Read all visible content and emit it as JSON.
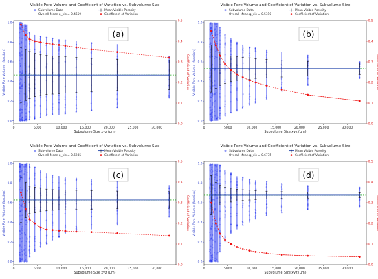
{
  "figure": {
    "axis_color_left": "#3344cc",
    "axis_color_right": "#dd2222",
    "subvolume_color": "#2233ee",
    "mean_line_color": "#2244aa",
    "overall_mean_color": "#22aa22",
    "cv_color": "#ee1111"
  },
  "chart_data": [
    {
      "type": "scatter",
      "panel_label": "(a)",
      "title": "Visible Pore Volume and Coefficient of Variation vs. Subvolume Size",
      "xlabel": "Subvolume Size xyz (μm)",
      "ylabel": "Visible Pore Volume (fraction)",
      "y2label": "Coefficient of Variation",
      "xlim": [
        0,
        34000
      ],
      "ylim": [
        -0.03,
        1.02
      ],
      "y2lim": [
        0,
        0.5
      ],
      "xticks": [
        "0",
        "5000",
        "10,000",
        "15,000",
        "20,000",
        "25,000",
        "30,000"
      ],
      "yticks": [
        "0.0",
        "0.2",
        "0.4",
        "0.6",
        "0.8",
        "1.0"
      ],
      "y2ticks": [
        "0.0",
        "0.1",
        "0.2",
        "0.3",
        "0.4",
        "0.5"
      ],
      "legend": [
        "Subvolume Data",
        "Overall Mean φ_vis = 0.4659",
        "Mean Visible Porosity",
        "Coefficient of Variation"
      ],
      "overall_mean": 0.4659,
      "x": [
        1500,
        2500,
        3300,
        4400,
        5600,
        6900,
        8100,
        9500,
        10800,
        13100,
        16300,
        21700,
        32600
      ],
      "cv": [
        0.48,
        0.43,
        0.41,
        0.4,
        0.395,
        0.39,
        0.385,
        0.382,
        0.378,
        0.37,
        0.36,
        0.348,
        0.32
      ],
      "mean": [
        0.4659,
        0.4659,
        0.4659,
        0.4659,
        0.4659,
        0.4659,
        0.4659,
        0.4659,
        0.4659,
        0.4659,
        0.4659,
        0.4659,
        0.4659
      ],
      "std": [
        0.28,
        0.26,
        0.24,
        0.22,
        0.21,
        0.2,
        0.195,
        0.19,
        0.185,
        0.18,
        0.17,
        0.16,
        0.15
      ],
      "spread_min": [
        0.0,
        0.0,
        0.01,
        0.02,
        0.03,
        0.05,
        0.06,
        0.06,
        0.07,
        0.09,
        0.1,
        0.13,
        0.23
      ],
      "spread_max": [
        1.0,
        0.98,
        0.9,
        0.87,
        0.86,
        0.85,
        0.84,
        0.83,
        0.82,
        0.81,
        0.8,
        0.78,
        0.66
      ]
    },
    {
      "type": "scatter",
      "panel_label": "(b)",
      "title": "Visible Pore Volume and Coefficient of Variation vs. Subvolume Size",
      "xlabel": "Subvolume Size xyz (μm)",
      "ylabel": "Visible Pore Volume (fraction)",
      "y2label": "Coefficient of Variation",
      "xlim": [
        0,
        34000
      ],
      "ylim": [
        -0.03,
        1.02
      ],
      "y2lim": [
        0,
        0.5
      ],
      "xticks": [
        "0",
        "5000",
        "10,000",
        "15,000",
        "20,000",
        "25,000",
        "30,000"
      ],
      "yticks": [
        "0.0",
        "0.2",
        "0.4",
        "0.6",
        "0.8",
        "1.0"
      ],
      "y2ticks": [
        "0.0",
        "0.1",
        "0.2",
        "0.3",
        "0.4",
        "0.5"
      ],
      "legend": [
        "Subvolume Data",
        "Overall Mean φ_vis = 0.5310",
        "Mean Visible Porosity",
        "Coefficient of Variation"
      ],
      "overall_mean": 0.531,
      "x": [
        1500,
        2500,
        3300,
        4400,
        5600,
        6900,
        8100,
        9500,
        10800,
        13100,
        16300,
        21700,
        32600
      ],
      "cv": [
        0.45,
        0.38,
        0.33,
        0.29,
        0.26,
        0.24,
        0.225,
        0.21,
        0.2,
        0.185,
        0.165,
        0.14,
        0.11
      ],
      "mean": [
        0.531,
        0.531,
        0.531,
        0.531,
        0.531,
        0.531,
        0.531,
        0.531,
        0.531,
        0.531,
        0.531,
        0.531,
        0.531
      ],
      "std": [
        0.24,
        0.2,
        0.17,
        0.15,
        0.13,
        0.12,
        0.115,
        0.11,
        0.1,
        0.095,
        0.085,
        0.075,
        0.06
      ],
      "spread_min": [
        0.0,
        0.0,
        0.02,
        0.05,
        0.08,
        0.1,
        0.13,
        0.16,
        0.18,
        0.22,
        0.3,
        0.36,
        0.43
      ],
      "spread_max": [
        1.0,
        1.0,
        0.95,
        0.88,
        0.84,
        0.8,
        0.77,
        0.75,
        0.74,
        0.72,
        0.7,
        0.67,
        0.6
      ]
    },
    {
      "type": "scatter",
      "panel_label": "(c)",
      "title": "Visible Pore Volume and Coefficient of Variation vs. Subvolume Size",
      "xlabel": "Subvolume Size xyz (μm)",
      "ylabel": "Visible Pore Volume (fraction)",
      "y2label": "Coefficient of Variation",
      "xlim": [
        0,
        34000
      ],
      "ylim": [
        -0.03,
        1.02
      ],
      "y2lim": [
        0,
        0.5
      ],
      "xticks": [
        "0",
        "5000",
        "10,000",
        "15,000",
        "20,000",
        "25,000",
        "30,000"
      ],
      "yticks": [
        "0.0",
        "0.2",
        "0.4",
        "0.6",
        "0.8",
        "1.0"
      ],
      "y2ticks": [
        "0.0",
        "0.1",
        "0.2",
        "0.3",
        "0.4",
        "0.5"
      ],
      "legend": [
        "Subvolume Data",
        "Overall Mean φ_vis = 0.6285",
        "Mean Visible Porosity",
        "Coefficient of Variation"
      ],
      "overall_mean": 0.6285,
      "x": [
        1500,
        2500,
        3300,
        4400,
        5600,
        6900,
        8100,
        9500,
        10800,
        13100,
        16300,
        21700,
        32600
      ],
      "cv": [
        0.35,
        0.27,
        0.22,
        0.2,
        0.18,
        0.17,
        0.168,
        0.165,
        0.163,
        0.16,
        0.158,
        0.152,
        0.14
      ],
      "mean": [
        0.6285,
        0.6285,
        0.6285,
        0.6285,
        0.6285,
        0.6285,
        0.6285,
        0.6285,
        0.6285,
        0.6285,
        0.6285,
        0.6285,
        0.6285
      ],
      "std": [
        0.23,
        0.18,
        0.14,
        0.13,
        0.12,
        0.11,
        0.105,
        0.1,
        0.1,
        0.098,
        0.095,
        0.09,
        0.085
      ],
      "spread_min": [
        0.0,
        0.0,
        0.05,
        0.1,
        0.14,
        0.18,
        0.22,
        0.25,
        0.28,
        0.3,
        0.33,
        0.37,
        0.45
      ],
      "spread_max": [
        1.0,
        1.0,
        1.0,
        0.96,
        0.93,
        0.9,
        0.88,
        0.87,
        0.86,
        0.85,
        0.84,
        0.82,
        0.78
      ]
    },
    {
      "type": "scatter",
      "panel_label": "(d)",
      "title": "Visible Pore Volume and Coefficient of Variation vs. Subvolume Size",
      "xlabel": "Subvolume Size xyz (μm)",
      "ylabel": "Visible Pore Volume (fraction)",
      "y2label": "Coefficient of Variation",
      "xlim": [
        0,
        34000
      ],
      "ylim": [
        -0.03,
        1.02
      ],
      "y2lim": [
        0,
        0.5
      ],
      "xticks": [
        "0",
        "5000",
        "10,000",
        "15,000",
        "20,000",
        "25,000",
        "30,000"
      ],
      "yticks": [
        "0.0",
        "0.2",
        "0.4",
        "0.6",
        "0.8",
        "1.0"
      ],
      "y2ticks": [
        "0.0",
        "0.1",
        "0.2",
        "0.3",
        "0.4",
        "0.5"
      ],
      "legend": [
        "Subvolume Data",
        "Overall Mean φ_vis = 0.6775",
        "Mean Visible Porosity",
        "Coefficient of Variation"
      ],
      "overall_mean": 0.6775,
      "x": [
        1500,
        2500,
        3300,
        4400,
        5600,
        6900,
        8100,
        9500,
        10800,
        13100,
        16300,
        21700,
        32600
      ],
      "cv": [
        0.3,
        0.2,
        0.15,
        0.12,
        0.1,
        0.085,
        0.075,
        0.068,
        0.062,
        0.055,
        0.048,
        0.043,
        0.038
      ],
      "mean": [
        0.6775,
        0.6775,
        0.6775,
        0.6775,
        0.6775,
        0.6775,
        0.6775,
        0.6775,
        0.6775,
        0.6775,
        0.6775,
        0.6775,
        0.6775
      ],
      "std": [
        0.2,
        0.13,
        0.1,
        0.08,
        0.07,
        0.06,
        0.055,
        0.05,
        0.045,
        0.04,
        0.035,
        0.03,
        0.025
      ],
      "spread_min": [
        0.0,
        0.0,
        0.1,
        0.2,
        0.28,
        0.33,
        0.37,
        0.4,
        0.43,
        0.47,
        0.5,
        0.53,
        0.56
      ],
      "spread_max": [
        1.0,
        1.0,
        0.98,
        0.93,
        0.9,
        0.87,
        0.86,
        0.84,
        0.83,
        0.82,
        0.8,
        0.78,
        0.76
      ]
    }
  ]
}
